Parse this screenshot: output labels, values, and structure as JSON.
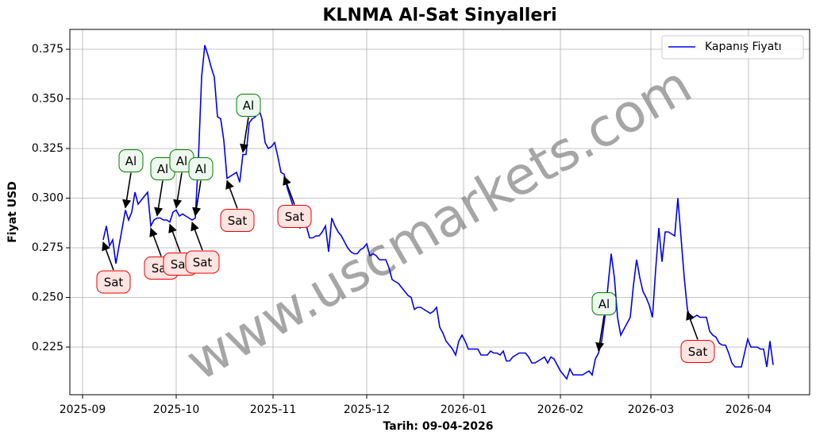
{
  "chart_data": {
    "type": "line",
    "title": "KLNMA Al-Sat Sinyalleri",
    "xlabel": "Tarih: 09-04-2026",
    "ylabel": "Fiyat USD",
    "watermark": "www.uscmarkets.com",
    "grid": true,
    "legend": "upper right",
    "xlim": [
      -10.5,
      222.5
    ],
    "xticks": [
      {
        "value": -6.5,
        "label": "2025-09"
      },
      {
        "value": 23,
        "label": "2025-10"
      },
      {
        "value": 53.5,
        "label": "2025-11"
      },
      {
        "value": 83,
        "label": "2025-12"
      },
      {
        "value": 113.5,
        "label": "2026-01"
      },
      {
        "value": 144,
        "label": "2026-02"
      },
      {
        "value": 172.5,
        "label": "2026-03"
      },
      {
        "value": 203.25,
        "label": "2026-04"
      }
    ],
    "ylim": [
      0.201,
      0.385
    ],
    "yticks": [
      0.225,
      {
        "value": 0.25,
        "label": "0.250"
      },
      0.275,
      {
        "value": 0.3,
        "label": "0.300"
      },
      0.325,
      {
        "value": 0.35,
        "label": "0.350"
      },
      0.375
    ],
    "series": [
      {
        "name": "Kapanış Fiyatı",
        "color": "#0000ee",
        "values": [
          0.279,
          0.286,
          0.276,
          0.279,
          0.267,
          0.276,
          0.285,
          0.294,
          0.289,
          0.293,
          0.303,
          0.297,
          0.299,
          0.301,
          0.303,
          0.286,
          0.289,
          0.29,
          0.29,
          0.289,
          0.289,
          0.288,
          0.293,
          0.294,
          0.291,
          0.292,
          0.291,
          0.29,
          0.289,
          0.29,
          0.32,
          0.361,
          0.377,
          0.372,
          0.366,
          0.361,
          0.341,
          0.34,
          0.329,
          0.31,
          0.311,
          0.312,
          0.313,
          0.308,
          0.322,
          0.322,
          0.338,
          0.34,
          0.341,
          0.345,
          0.34,
          0.328,
          0.325,
          0.326,
          0.328,
          0.321,
          0.313,
          0.312,
          0.305,
          0.3,
          0.295,
          0.286,
          0.285,
          0.29,
          0.286,
          0.28,
          0.28,
          0.281,
          0.281,
          0.283,
          0.286,
          0.273,
          0.29,
          0.286,
          0.283,
          0.281,
          0.278,
          0.275,
          0.273,
          0.272,
          0.272,
          0.274,
          0.275,
          0.277,
          0.271,
          0.272,
          0.271,
          0.269,
          0.269,
          0.269,
          0.265,
          0.259,
          0.258,
          0.257,
          0.255,
          0.253,
          0.251,
          0.25,
          0.244,
          0.245,
          0.245,
          0.244,
          0.243,
          0.242,
          0.243,
          0.245,
          0.235,
          0.232,
          0.228,
          0.226,
          0.224,
          0.221,
          0.228,
          0.231,
          0.228,
          0.224,
          0.224,
          0.224,
          0.224,
          0.221,
          0.221,
          0.221,
          0.223,
          0.222,
          0.222,
          0.221,
          0.223,
          0.218,
          0.218,
          0.22,
          0.221,
          0.222,
          0.222,
          0.222,
          0.22,
          0.217,
          0.217,
          0.218,
          0.219,
          0.22,
          0.217,
          0.22,
          0.219,
          0.216,
          0.213,
          0.211,
          0.209,
          0.214,
          0.211,
          0.211,
          0.211,
          0.211,
          0.212,
          0.213,
          0.211,
          0.219,
          0.222,
          0.228,
          0.24,
          0.256,
          0.272,
          0.26,
          0.24,
          0.231,
          0.234,
          0.237,
          0.24,
          0.256,
          0.269,
          0.26,
          0.253,
          0.25,
          0.246,
          0.24,
          0.264,
          0.285,
          0.268,
          0.283,
          0.283,
          0.282,
          0.281,
          0.3,
          0.28,
          0.26,
          0.244,
          0.239,
          0.24,
          0.241,
          0.24,
          0.24,
          0.24,
          0.233,
          0.231,
          0.23,
          0.227,
          0.226,
          0.226,
          0.222,
          0.217,
          0.215,
          0.215,
          0.215,
          0.222,
          0.229,
          0.225,
          0.225,
          0.225,
          0.224,
          0.224,
          0.215,
          0.228,
          0.216
        ]
      }
    ],
    "annotations": [
      {
        "text": "Sat",
        "x": 0,
        "y": 0.279
      },
      {
        "text": "Al",
        "x": 7,
        "y": 0.294
      },
      {
        "text": "Sat",
        "x": 15,
        "y": 0.286
      },
      {
        "text": "Al",
        "x": 17,
        "y": 0.29
      },
      {
        "text": "Sat",
        "x": 21,
        "y": 0.288
      },
      {
        "text": "Al",
        "x": 23,
        "y": 0.294
      },
      {
        "text": "Sat",
        "x": 28,
        "y": 0.289
      },
      {
        "text": "Al",
        "x": 29,
        "y": 0.29
      },
      {
        "text": "Sat",
        "x": 39,
        "y": 0.31
      },
      {
        "text": "Al",
        "x": 44,
        "y": 0.322
      },
      {
        "text": "Sat",
        "x": 57,
        "y": 0.312
      },
      {
        "text": "Al",
        "x": 156,
        "y": 0.222
      },
      {
        "text": "Sat",
        "x": 184,
        "y": 0.244
      }
    ]
  }
}
